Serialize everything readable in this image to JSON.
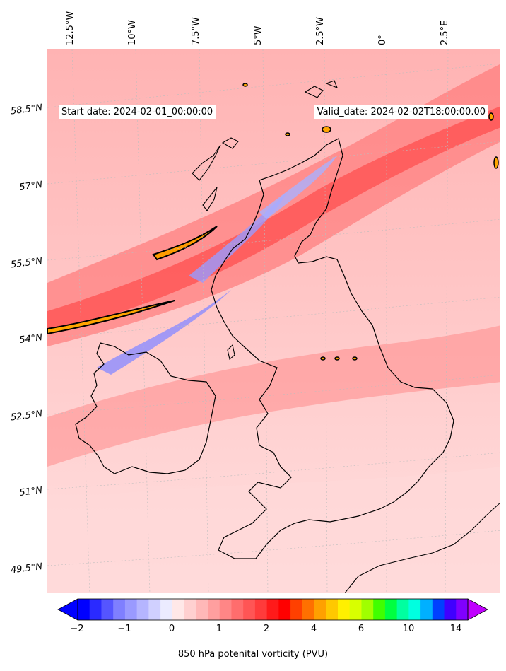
{
  "map": {
    "start_date": "Start date: 2024-02-01_00:00:00",
    "valid_date": "Valid_date: 2024-02-02T18:00:00.00",
    "lon_labels": [
      "12.5°W",
      "10°W",
      "7.5°W",
      "5°W",
      "2.5°W",
      "0°",
      "2.5°E"
    ],
    "lat_labels": [
      "58.5°N",
      "57°N",
      "55.5°N",
      "54°N",
      "52.5°N",
      "51°N",
      "49.5°N"
    ]
  },
  "colorbar": {
    "label": "850 hPa potenital vorticity (PVU)",
    "tick_labels": [
      "−2",
      "−1",
      "0",
      "1",
      "2",
      "4",
      "6",
      "10",
      "14"
    ],
    "colors": [
      "#0000ff",
      "#2a2aff",
      "#5555ff",
      "#7f7fff",
      "#9a9aff",
      "#b5b5ff",
      "#d0d0ff",
      "#ebebff",
      "#ffe8e8",
      "#ffd0d0",
      "#ffb8b8",
      "#ff9f9f",
      "#ff8686",
      "#ff6d6d",
      "#ff5555",
      "#ff3b3b",
      "#ff1a1a",
      "#ff0000",
      "#ff4000",
      "#ff7000",
      "#ffa000",
      "#ffc800",
      "#fff000",
      "#d8ff00",
      "#a0ff00",
      "#40ff00",
      "#00ff40",
      "#00ffa0",
      "#00ffe0",
      "#00b0ff",
      "#0040ff",
      "#4000ff",
      "#8000ff"
    ],
    "under_color": "#0000ff",
    "over_color": "#c000ff"
  }
}
